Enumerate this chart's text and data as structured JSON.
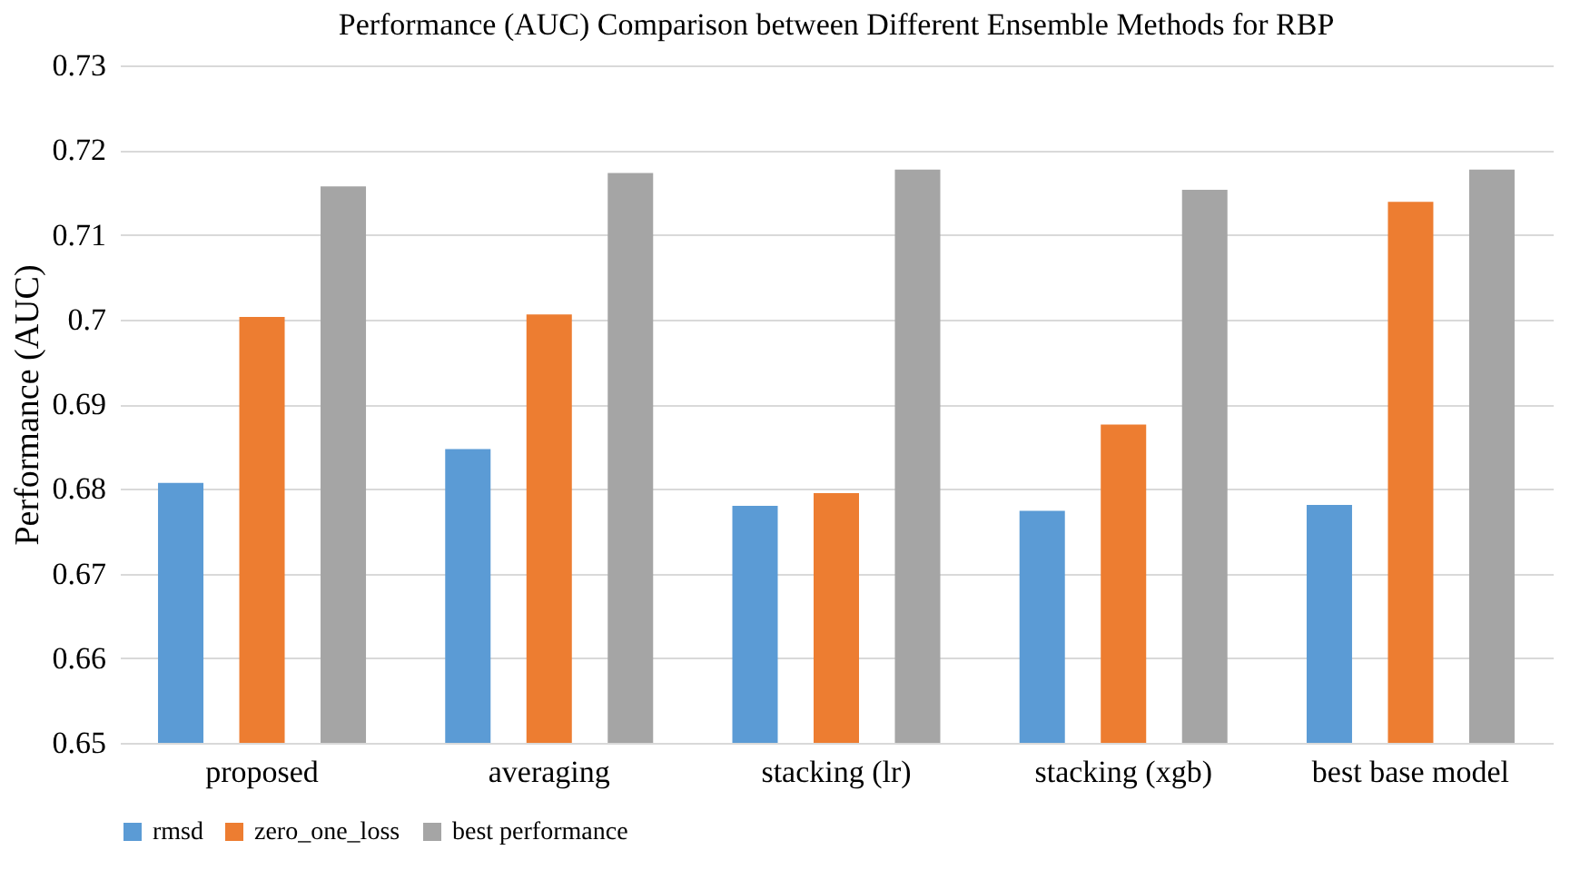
{
  "chart_data": {
    "type": "bar",
    "title": "Performance (AUC) Comparison between Different Ensemble Methods for RBP",
    "ylabel": "Performance (AUC)",
    "categories": [
      "proposed",
      "averaging",
      "stacking (lr)",
      "stacking (xgb)",
      "best base model"
    ],
    "series": [
      {
        "name": "rmsd",
        "color": "#5b9bd5",
        "values": [
          0.6807,
          0.6847,
          0.678,
          0.6774,
          0.6781
        ]
      },
      {
        "name": "zero_one_loss",
        "color": "#ed7d31",
        "values": [
          0.7003,
          0.7006,
          0.6795,
          0.6876,
          0.7139
        ]
      },
      {
        "name": "best performance",
        "color": "#a5a5a5",
        "values": [
          0.7157,
          0.7173,
          0.7177,
          0.7153,
          0.7177
        ]
      }
    ],
    "ylim": [
      0.65,
      0.73
    ],
    "yticks": [
      0.65,
      0.66,
      0.67,
      0.68,
      0.69,
      {
        "value": 0.7,
        "label": "0.7"
      },
      0.71,
      0.72,
      0.73
    ],
    "grid": "y",
    "legend": "bottom"
  }
}
